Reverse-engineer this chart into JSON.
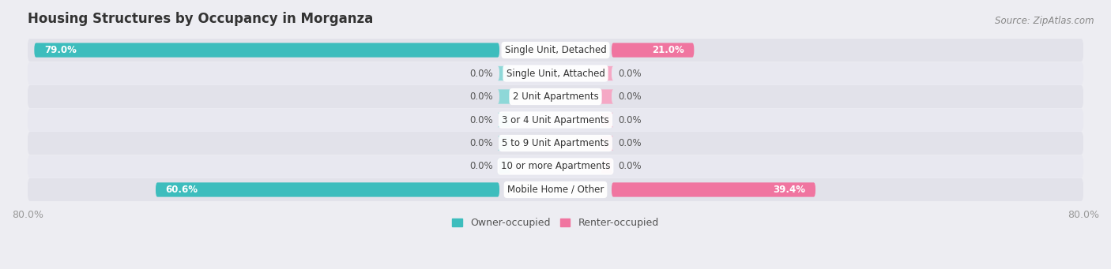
{
  "title": "Housing Structures by Occupancy in Morganza",
  "source": "Source: ZipAtlas.com",
  "categories": [
    "Single Unit, Detached",
    "Single Unit, Attached",
    "2 Unit Apartments",
    "3 or 4 Unit Apartments",
    "5 to 9 Unit Apartments",
    "10 or more Apartments",
    "Mobile Home / Other"
  ],
  "owner_values": [
    79.0,
    0.0,
    0.0,
    0.0,
    0.0,
    0.0,
    60.6
  ],
  "renter_values": [
    21.0,
    0.0,
    0.0,
    0.0,
    0.0,
    0.0,
    39.4
  ],
  "owner_color": "#3DBDBD",
  "owner_color_light": "#8ED8D8",
  "renter_color": "#F075A0",
  "renter_color_light": "#F5A8C5",
  "owner_label": "Owner-occupied",
  "renter_label": "Renter-occupied",
  "xlim_left": -80,
  "xlim_right": 80,
  "bg_color": "#ededf2",
  "row_bg_color_dark": "#e2e2ea",
  "row_bg_color_light": "#e8e8f0",
  "bar_height": 0.62,
  "min_stub": 7.0,
  "title_fontsize": 12,
  "source_fontsize": 8.5,
  "label_fontsize": 8.5,
  "category_fontsize": 8.5,
  "label_color_inner": "white",
  "label_color_outer": "#555555"
}
